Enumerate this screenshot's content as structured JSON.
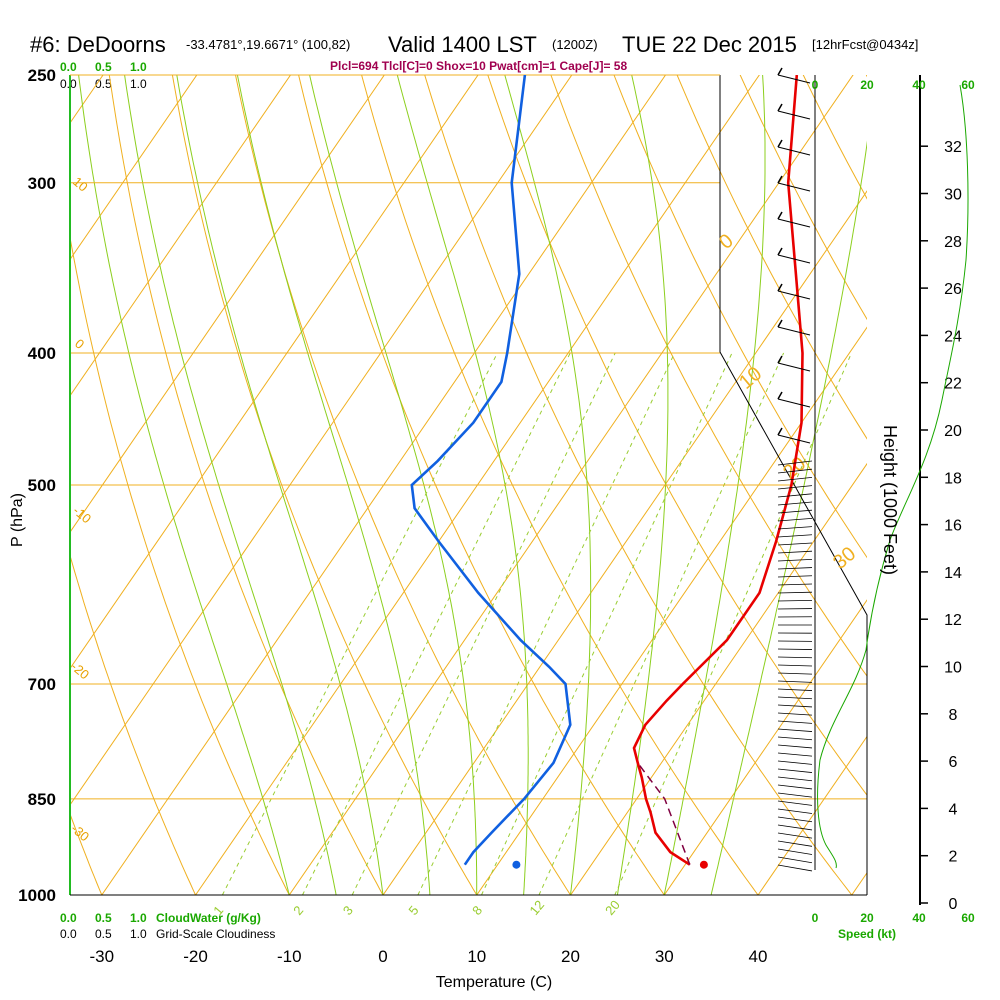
{
  "header": {
    "station": "#6: DeDoorns",
    "location": "-33.4781°,19.6671° (100,82)",
    "valid": "Valid 1400 LST",
    "valid_z": "(1200Z)",
    "date": "TUE 22 Dec 2015",
    "forecast": "[12hrFcst@0434z]",
    "params": "Plcl=694 Tlcl[C]=0 Shox=10 Pwat[cm]=1 Cape[J]= 58"
  },
  "labels": {
    "ylabel": "P (hPa)",
    "xlabel": "Temperature (C)",
    "height_label": "Height (1000 Feet)",
    "speed_label": "Speed (kt)",
    "cloud_water_label": "CloudWater (g/Kg)",
    "cloudiness_label": "Grid-Scale Cloudiness",
    "cw_scale_top": [
      "0.0",
      "0.5",
      "1.0"
    ],
    "cloud_scale_top": [
      "0.0",
      "0.5",
      "1.0"
    ],
    "cw_scale_bottom": [
      "0.0",
      "0.5",
      "1.0"
    ],
    "cloud_scale_bottom": [
      "0.0",
      "0.5",
      "1.0"
    ],
    "speed_ticks_top": [
      "0",
      "20",
      "40",
      "60"
    ],
    "speed_ticks_bottom": [
      "0",
      "20",
      "40",
      "60"
    ]
  },
  "chart_data": {
    "type": "line",
    "diagram": "skew-t log-p",
    "pressure_ticks": [
      250,
      300,
      400,
      500,
      700,
      850,
      1000
    ],
    "pressure_range": [
      250,
      1000
    ],
    "temperature_ticks": [
      -30,
      -20,
      -10,
      0,
      10,
      20,
      30,
      40
    ],
    "temperature_range_at_1000": [
      -33.5,
      45
    ],
    "height_ticks": [
      0,
      2,
      4,
      6,
      8,
      10,
      12,
      14,
      16,
      18,
      20,
      22,
      24,
      26,
      28,
      30,
      32
    ],
    "dry_adiabat_labels": [
      "10",
      "0",
      "-10",
      "-20",
      "-30",
      "0",
      "10",
      "20",
      "30"
    ],
    "mixing_ratio_labels": [
      "1",
      "2",
      "3",
      "5",
      "8",
      "12",
      "20"
    ],
    "series": [
      {
        "name": "Temperature",
        "color": "#e80000",
        "points": [
          [
            950,
            30.5
          ],
          [
            930,
            27.5
          ],
          [
            900,
            24.5
          ],
          [
            870,
            22.5
          ],
          [
            850,
            21.0
          ],
          [
            820,
            19.0
          ],
          [
            800,
            17.5
          ],
          [
            780,
            16.0
          ],
          [
            750,
            15.5
          ],
          [
            720,
            16.0
          ],
          [
            700,
            16.5
          ],
          [
            650,
            18.0
          ],
          [
            600,
            18.0
          ],
          [
            550,
            16.0
          ],
          [
            500,
            13.5
          ],
          [
            450,
            10.0
          ],
          [
            400,
            5.0
          ],
          [
            350,
            -1.5
          ],
          [
            300,
            -9.0
          ],
          [
            250,
            -16.0
          ]
        ]
      },
      {
        "name": "Dewpoint",
        "color": "#1060e0",
        "points": [
          [
            950,
            6.5
          ],
          [
            930,
            6.5
          ],
          [
            900,
            7.0
          ],
          [
            850,
            8.0
          ],
          [
            800,
            8.5
          ],
          [
            750,
            7.5
          ],
          [
            700,
            4.0
          ],
          [
            680,
            1.0
          ],
          [
            650,
            -4.0
          ],
          [
            600,
            -12.0
          ],
          [
            550,
            -20.0
          ],
          [
            520,
            -25.0
          ],
          [
            500,
            -27.0
          ],
          [
            480,
            -26.0
          ],
          [
            450,
            -25.0
          ],
          [
            420,
            -25.0
          ],
          [
            400,
            -26.5
          ],
          [
            350,
            -31.0
          ],
          [
            300,
            -38.5
          ],
          [
            250,
            -45.0
          ]
        ]
      },
      {
        "name": "Parcel",
        "color": "#800040",
        "points": [
          [
            950,
            30.5
          ],
          [
            850,
            23.0
          ],
          [
            800,
            17.5
          ]
        ]
      }
    ],
    "surface_temperature_dot": [
      950,
      32.0
    ],
    "surface_dewpoint_dot": [
      950,
      12.0
    ]
  }
}
